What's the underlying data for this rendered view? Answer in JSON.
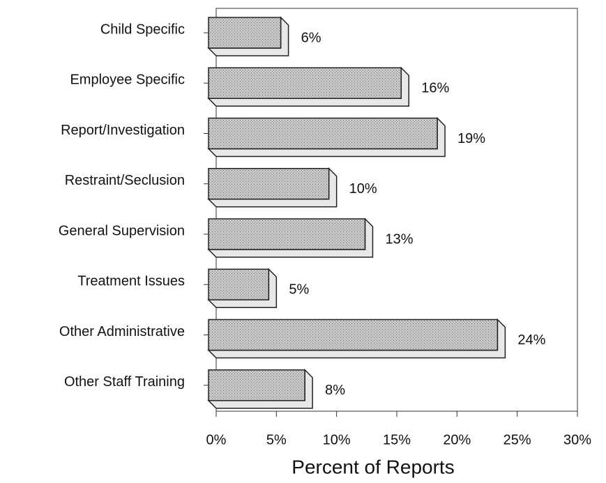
{
  "chart_data": {
    "type": "bar",
    "orientation": "horizontal",
    "xlabel": "Percent of Reports",
    "categories": [
      "Child Specific",
      "Employee Specific",
      "Report/Investigation",
      "Restraint/Seclusion",
      "General Supervision",
      "Treatment Issues",
      "Other Administrative",
      "Other Staff Training"
    ],
    "values": [
      6,
      16,
      19,
      10,
      13,
      5,
      24,
      8
    ],
    "value_labels": [
      "6%",
      "16%",
      "19%",
      "10%",
      "13%",
      "5%",
      "24%",
      "8%"
    ],
    "color": "#bdbdbd",
    "xlim": [
      0,
      30
    ],
    "xticks": [
      {
        "value": 0,
        "label": "0%"
      },
      {
        "value": 5,
        "label": "5%"
      },
      {
        "value": 10,
        "label": "10%"
      },
      {
        "value": 15,
        "label": "15%"
      },
      {
        "value": 20,
        "label": "20%"
      },
      {
        "value": 25,
        "label": "25%"
      },
      {
        "value": 30,
        "label": "30%"
      }
    ]
  }
}
